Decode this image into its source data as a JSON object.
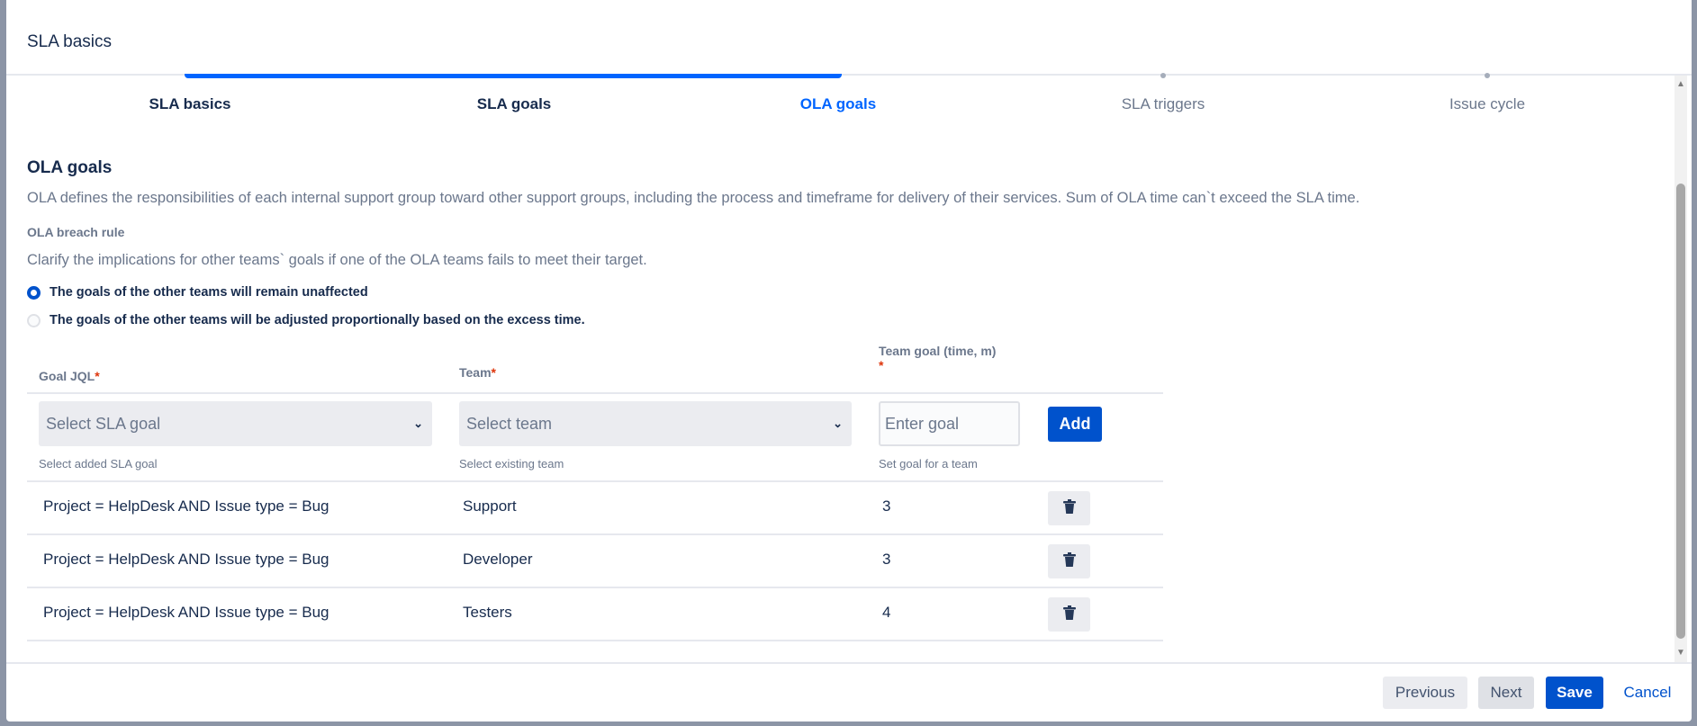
{
  "header": {
    "title": "SLA basics"
  },
  "steps": [
    {
      "label": "SLA basics",
      "state": "done"
    },
    {
      "label": "SLA goals",
      "state": "done"
    },
    {
      "label": "OLA goals",
      "state": "active"
    },
    {
      "label": "SLA triggers",
      "state": "todo"
    },
    {
      "label": "Issue cycle",
      "state": "todo"
    }
  ],
  "section": {
    "title": "OLA goals",
    "description": "OLA defines the responsibilities of each internal support group toward other support groups, including the process and timeframe for delivery of their services. Sum of OLA time can`t exceed the SLA time.",
    "breach_label": "OLA breach rule",
    "breach_desc": "Clarify the implications for other teams` goals if one of the OLA teams fails to meet their target.",
    "options": [
      {
        "label": "The goals of the other teams will remain unaffected",
        "selected": true
      },
      {
        "label": "The goals of the other teams will be adjusted proportionally based on the excess time.",
        "selected": false
      }
    ]
  },
  "table": {
    "headers": {
      "goal": "Goal JQL",
      "team": "Team",
      "time": "Team goal (time, m)",
      "required": "*"
    },
    "form": {
      "goal_select": "Select SLA goal",
      "goal_help": "Select added SLA goal",
      "team_select": "Select team",
      "team_help": "Select existing team",
      "time_placeholder": "Enter goal",
      "time_help": "Set goal for a team",
      "add": "Add"
    },
    "rows": [
      {
        "goal": "Project = HelpDesk AND Issue type = Bug",
        "team": "Support",
        "time": "3"
      },
      {
        "goal": "Project = HelpDesk AND Issue type = Bug",
        "team": "Developer",
        "time": "3"
      },
      {
        "goal": "Project = HelpDesk AND Issue type = Bug",
        "team": "Testers",
        "time": "4"
      }
    ]
  },
  "footer": {
    "previous": "Previous",
    "next": "Next",
    "save": "Save",
    "cancel": "Cancel"
  },
  "colors": {
    "accent": "#0052cc",
    "progress": "#0065ff",
    "required": "#de350b"
  }
}
